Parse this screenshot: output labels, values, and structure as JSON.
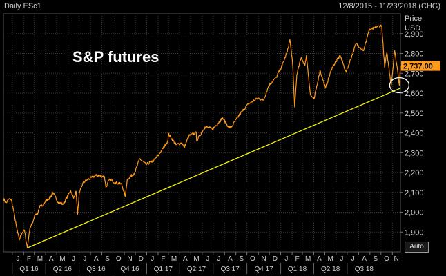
{
  "header": {
    "title": "Daily ESc1",
    "date_range": "12/8/2015 - 11/23/2018 (CHG)"
  },
  "annotation": "S&P futures",
  "axis_title": {
    "line1": "Price",
    "line2": "USD"
  },
  "auto_button_label": "Auto",
  "colors": {
    "background": "#000000",
    "grid": "#3a3a3a",
    "price_line": "#ff9a1a",
    "trendline": "#f4f40a",
    "last_price_bg": "#ff9a1a",
    "circle": "#ffffff"
  },
  "chart_data": {
    "type": "line",
    "title": "Daily ESc1",
    "ylabel": "Price USD",
    "ylim": [
      1800,
      3000
    ],
    "y_ticks": [
      1900,
      2000,
      2100,
      2200,
      2300,
      2400,
      2500,
      2600,
      2700,
      2800,
      2900
    ],
    "y_tick_labels": [
      "1,900",
      "2,000",
      "2,100",
      "2,200",
      "2,300",
      "2,400",
      "2,500",
      "2,600",
      "2,700",
      "2,800",
      "2,900"
    ],
    "x_range": [
      "2015-12-08",
      "2018-11-23"
    ],
    "month_labels": [
      "J",
      "F",
      "M",
      "A",
      "M",
      "J",
      "J",
      "A",
      "S",
      "O",
      "N",
      "D",
      "J",
      "F",
      "M",
      "A",
      "M",
      "J",
      "J",
      "A",
      "S",
      "O",
      "N",
      "D",
      "J",
      "F",
      "M",
      "A",
      "M",
      "J",
      "J",
      "A",
      "S",
      "O",
      "N"
    ],
    "quarter_labels": [
      "Q1 16",
      "Q2 16",
      "Q3 16",
      "Q4 16",
      "Q1 17",
      "Q2 17",
      "Q3 17",
      "Q4 17",
      "Q1 18",
      "Q2 18",
      "Q3 18"
    ],
    "last_price": 2737.0,
    "last_price_label": "2,737.00",
    "grid": true,
    "series": [
      {
        "name": "ESc1",
        "points": [
          [
            "2015-12-08",
            2070
          ],
          [
            "2015-12-15",
            2045
          ],
          [
            "2015-12-22",
            2065
          ],
          [
            "2015-12-29",
            2065
          ],
          [
            "2016-01-05",
            2005
          ],
          [
            "2016-01-12",
            1930
          ],
          [
            "2016-01-20",
            1860
          ],
          [
            "2016-01-27",
            1895
          ],
          [
            "2016-02-03",
            1910
          ],
          [
            "2016-02-11",
            1820
          ],
          [
            "2016-02-18",
            1920
          ],
          [
            "2016-02-25",
            1945
          ],
          [
            "2016-03-03",
            1990
          ],
          [
            "2016-03-10",
            1990
          ],
          [
            "2016-03-17",
            2035
          ],
          [
            "2016-03-24",
            2030
          ],
          [
            "2016-03-31",
            2055
          ],
          [
            "2016-04-14",
            2075
          ],
          [
            "2016-04-20",
            2100
          ],
          [
            "2016-05-05",
            2050
          ],
          [
            "2016-05-19",
            2040
          ],
          [
            "2016-06-08",
            2110
          ],
          [
            "2016-06-16",
            2070
          ],
          [
            "2016-06-23",
            2105
          ],
          [
            "2016-06-27",
            1990
          ],
          [
            "2016-07-01",
            2090
          ],
          [
            "2016-07-12",
            2150
          ],
          [
            "2016-07-26",
            2165
          ],
          [
            "2016-08-15",
            2185
          ],
          [
            "2016-09-08",
            2180
          ],
          [
            "2016-09-12",
            2125
          ],
          [
            "2016-09-22",
            2165
          ],
          [
            "2016-10-07",
            2150
          ],
          [
            "2016-10-25",
            2140
          ],
          [
            "2016-11-04",
            2080
          ],
          [
            "2016-11-09",
            2165
          ],
          [
            "2016-11-30",
            2200
          ],
          [
            "2016-12-13",
            2270
          ],
          [
            "2016-12-30",
            2240
          ],
          [
            "2017-01-20",
            2260
          ],
          [
            "2017-02-03",
            2290
          ],
          [
            "2017-02-28",
            2360
          ],
          [
            "2017-03-01",
            2395
          ],
          [
            "2017-03-22",
            2340
          ],
          [
            "2017-04-07",
            2350
          ],
          [
            "2017-04-13",
            2325
          ],
          [
            "2017-04-26",
            2385
          ],
          [
            "2017-05-16",
            2400
          ],
          [
            "2017-05-17",
            2360
          ],
          [
            "2017-06-09",
            2430
          ],
          [
            "2017-06-30",
            2420
          ],
          [
            "2017-07-27",
            2475
          ],
          [
            "2017-08-10",
            2435
          ],
          [
            "2017-08-18",
            2425
          ],
          [
            "2017-09-12",
            2495
          ],
          [
            "2017-10-05",
            2545
          ],
          [
            "2017-10-31",
            2575
          ],
          [
            "2017-11-15",
            2565
          ],
          [
            "2017-11-30",
            2640
          ],
          [
            "2017-12-20",
            2680
          ],
          [
            "2018-01-05",
            2740
          ],
          [
            "2018-01-19",
            2810
          ],
          [
            "2018-01-26",
            2870
          ],
          [
            "2018-02-02",
            2760
          ],
          [
            "2018-02-08",
            2530
          ],
          [
            "2018-02-14",
            2695
          ],
          [
            "2018-02-26",
            2780
          ],
          [
            "2018-03-08",
            2740
          ],
          [
            "2018-03-12",
            2790
          ],
          [
            "2018-03-23",
            2590
          ],
          [
            "2018-04-02",
            2570
          ],
          [
            "2018-04-18",
            2715
          ],
          [
            "2018-05-03",
            2625
          ],
          [
            "2018-05-21",
            2730
          ],
          [
            "2018-06-12",
            2790
          ],
          [
            "2018-06-28",
            2705
          ],
          [
            "2018-07-25",
            2850
          ],
          [
            "2018-08-15",
            2815
          ],
          [
            "2018-08-29",
            2915
          ],
          [
            "2018-09-20",
            2935
          ],
          [
            "2018-10-03",
            2940
          ],
          [
            "2018-10-11",
            2730
          ],
          [
            "2018-10-17",
            2805
          ],
          [
            "2018-10-29",
            2640
          ],
          [
            "2018-11-07",
            2815
          ],
          [
            "2018-11-15",
            2720
          ],
          [
            "2018-11-20",
            2640
          ],
          [
            "2018-11-23",
            2737
          ]
        ]
      },
      {
        "name": "trendline",
        "points": [
          [
            "2016-02-11",
            1820
          ],
          [
            "2018-11-23",
            2625
          ]
        ]
      }
    ],
    "marker": {
      "type": "circle",
      "date": "2018-11-20",
      "value": 2640
    }
  }
}
